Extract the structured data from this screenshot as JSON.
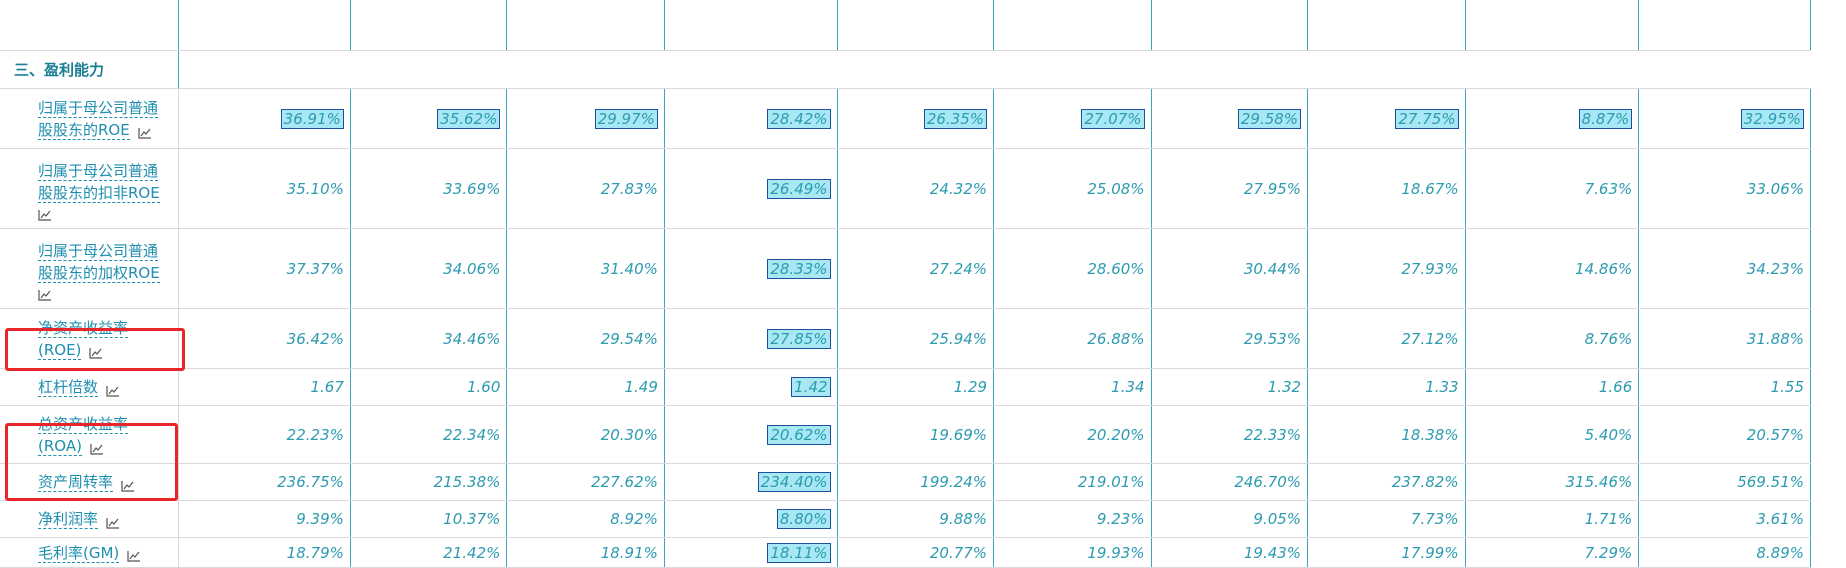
{
  "section": {
    "title": "三、盈利能力"
  },
  "rows": [
    {
      "label_lines": [
        "归属于母公司普通",
        "股股东的ROE"
      ],
      "icon_inline": true,
      "values": [
        "36.91%",
        "35.62%",
        "29.97%",
        "28.42%",
        "26.35%",
        "27.07%",
        "29.58%",
        "27.75%",
        "8.87%",
        "32.95%"
      ],
      "highlight": [
        true,
        true,
        true,
        true,
        true,
        true,
        true,
        true,
        true,
        true
      ]
    },
    {
      "label_lines": [
        "归属于母公司普通",
        "股股东的扣非ROE"
      ],
      "icon_inline": false,
      "values": [
        "35.10%",
        "33.69%",
        "27.83%",
        "26.49%",
        "24.32%",
        "25.08%",
        "27.95%",
        "18.67%",
        "7.63%",
        "33.06%"
      ],
      "highlight": [
        false,
        false,
        false,
        true,
        false,
        false,
        false,
        false,
        false,
        false
      ]
    },
    {
      "label_lines": [
        "归属于母公司普通",
        "股股东的加权ROE"
      ],
      "icon_inline": false,
      "values": [
        "37.37%",
        "34.06%",
        "31.40%",
        "28.33%",
        "27.24%",
        "28.60%",
        "30.44%",
        "27.93%",
        "14.86%",
        "34.23%"
      ],
      "highlight": [
        false,
        false,
        false,
        true,
        false,
        false,
        false,
        false,
        false,
        false
      ]
    },
    {
      "label_lines": [
        "净资产收益率",
        "(ROE)"
      ],
      "icon_inline": true,
      "values": [
        "36.42%",
        "34.46%",
        "29.54%",
        "27.85%",
        "25.94%",
        "26.88%",
        "29.53%",
        "27.12%",
        "8.76%",
        "31.88%"
      ],
      "highlight": [
        false,
        false,
        false,
        true,
        false,
        false,
        false,
        false,
        false,
        false
      ]
    },
    {
      "label_lines": [
        "杠杆倍数"
      ],
      "icon_inline": true,
      "values": [
        "1.67",
        "1.60",
        "1.49",
        "1.42",
        "1.29",
        "1.34",
        "1.32",
        "1.33",
        "1.66",
        "1.55"
      ],
      "highlight": [
        false,
        false,
        false,
        true,
        false,
        false,
        false,
        false,
        false,
        false
      ]
    },
    {
      "label_lines": [
        "总资产收益率",
        "(ROA)"
      ],
      "icon_inline": true,
      "values": [
        "22.23%",
        "22.34%",
        "20.30%",
        "20.62%",
        "19.69%",
        "20.20%",
        "22.33%",
        "18.38%",
        "5.40%",
        "20.57%"
      ],
      "highlight": [
        false,
        false,
        false,
        true,
        false,
        false,
        false,
        false,
        false,
        false
      ]
    },
    {
      "label_lines": [
        "资产周转率"
      ],
      "icon_inline": true,
      "values": [
        "236.75%",
        "215.38%",
        "227.62%",
        "234.40%",
        "199.24%",
        "219.01%",
        "246.70%",
        "237.82%",
        "315.46%",
        "569.51%"
      ],
      "highlight": [
        false,
        false,
        false,
        true,
        false,
        false,
        false,
        false,
        false,
        false
      ]
    },
    {
      "label_lines": [
        "净利润率"
      ],
      "icon_inline": true,
      "values": [
        "9.39%",
        "10.37%",
        "8.92%",
        "8.80%",
        "9.88%",
        "9.23%",
        "9.05%",
        "7.73%",
        "1.71%",
        "3.61%"
      ],
      "highlight": [
        false,
        false,
        false,
        true,
        false,
        false,
        false,
        false,
        false,
        false
      ]
    },
    {
      "label_lines": [
        "毛利率(GM)"
      ],
      "icon_inline": true,
      "values": [
        "18.79%",
        "21.42%",
        "18.91%",
        "18.11%",
        "20.77%",
        "19.93%",
        "19.43%",
        "17.99%",
        "7.29%",
        "8.89%"
      ],
      "highlight": [
        false,
        false,
        false,
        true,
        false,
        false,
        false,
        false,
        false,
        false
      ]
    }
  ],
  "colors": {
    "accent": "#1a7f95",
    "value_text": "#2c9bb0",
    "highlight_bg": "#a8e8f5",
    "annotation": "#e8262a"
  },
  "icons": {
    "trend": "trend-chart-icon"
  }
}
